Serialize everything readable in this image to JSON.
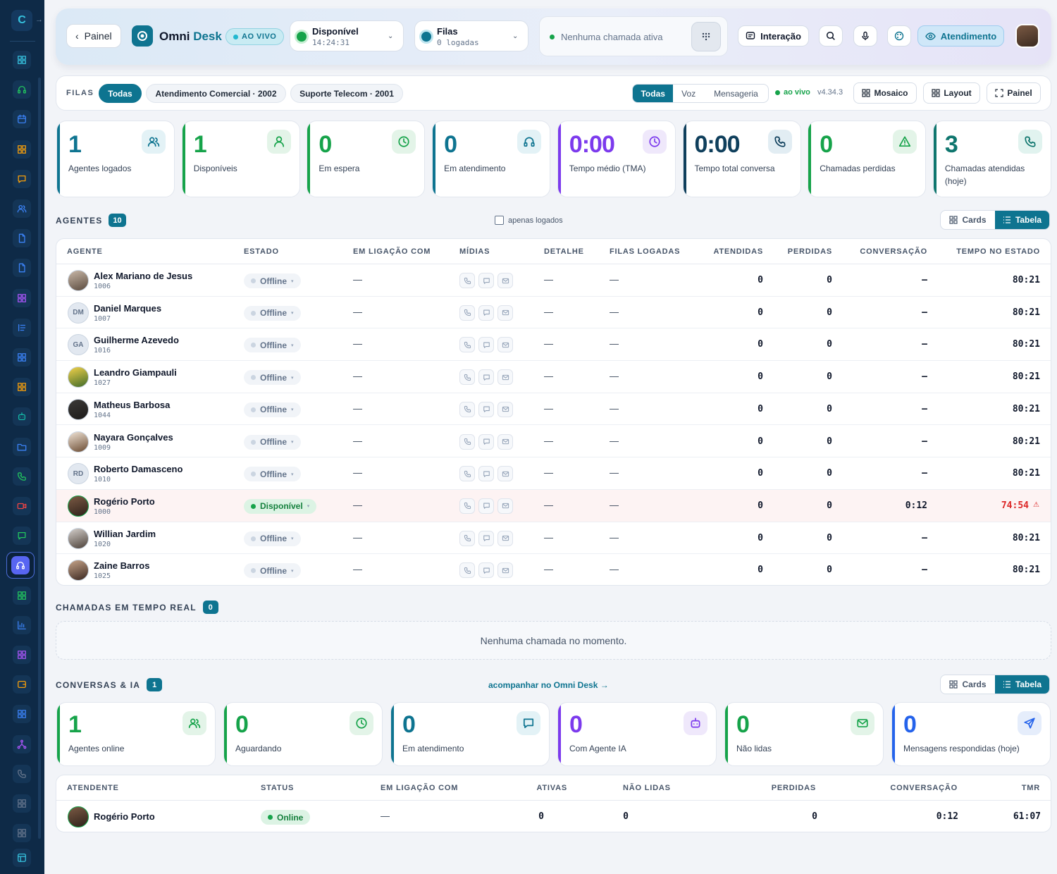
{
  "colors": {
    "accent": "#0e7490",
    "green": "#16a34a",
    "purple": "#7c3aed",
    "teal": "#0f766e",
    "blue": "#2563eb",
    "sidebar": "#0e2a47",
    "alert": "#dc2626"
  },
  "sidebar": {
    "icons": [
      "grid-icon",
      "headset-icon",
      "calendar-icon",
      "grid-icon",
      "chat-icon",
      "users-icon",
      "document-icon",
      "document-icon",
      "grid-icon",
      "list-icon",
      "grid-icon",
      "grid-icon",
      "robot-icon",
      "folder-icon",
      "phone-icon",
      "video-icon",
      "chat-icon",
      "headset-icon",
      "grid-icon",
      "chart-icon",
      "grid-icon",
      "wallet-icon",
      "grid-icon",
      "network-icon",
      "phone-icon",
      "grid-icon",
      "grid-icon",
      "panel-icon"
    ]
  },
  "header": {
    "back_label": "Painel",
    "app_title_a": "Omni",
    "app_title_b": "Desk",
    "live_label": "AO VIVO",
    "status_label": "Disponível",
    "status_timer": "14:24:31",
    "queue_label": "Filas",
    "queue_sub": "0 logadas",
    "call_status": "Nenhuma chamada ativa",
    "interaction_label": "Interação",
    "attendance_label": "Atendimento"
  },
  "filters": {
    "label": "FILAS",
    "chips": [
      "Todas",
      "Atendimento Comercial · 2002",
      "Suporte Telecom · 2001"
    ],
    "channels": [
      "Todas",
      "Voz",
      "Mensageria"
    ],
    "live": "ao vivo",
    "version": "v4.34.3",
    "mosaic": "Mosaico",
    "layout": "Layout",
    "panel": "Painel"
  },
  "kpis": [
    {
      "value": "1",
      "label": "Agentes logados",
      "color": "#0e7490",
      "icon": "users-icon"
    },
    {
      "value": "1",
      "label": "Disponíveis",
      "color": "#16a34a",
      "icon": "user-icon"
    },
    {
      "value": "0",
      "label": "Em espera",
      "color": "#16a34a",
      "icon": "clock-icon"
    },
    {
      "value": "0",
      "label": "Em atendimento",
      "color": "#0e7490",
      "icon": "headset-icon"
    },
    {
      "value": "0:00",
      "label": "Tempo médio (TMA)",
      "color": "#7c3aed",
      "icon": "clock-icon"
    },
    {
      "value": "0:00",
      "label": "Tempo total conversa",
      "color": "#0f3f5c",
      "icon": "phone-icon"
    },
    {
      "value": "0",
      "label": "Chamadas perdidas",
      "color": "#16a34a",
      "icon": "alert-icon"
    },
    {
      "value": "3",
      "label": "Chamadas atendidas (hoje)",
      "color": "#0f766e",
      "icon": "phone-icon"
    }
  ],
  "agents": {
    "title": "AGENTES",
    "count": "10",
    "only_logged": "apenas logados",
    "view_cards": "Cards",
    "view_table": "Tabela",
    "columns": [
      "AGENTE",
      "ESTADO",
      "EM LIGAÇÃO COM",
      "MÍDIAS",
      "DETALHE",
      "FILAS LOGADAS",
      "ATENDIDAS",
      "PERDIDAS",
      "CONVERSAÇÃO",
      "TEMPO NO ESTADO"
    ],
    "rows": [
      {
        "name": "Alex Mariano de Jesus",
        "ext": "1006",
        "initials": "",
        "state": "Offline",
        "call": "—",
        "detail": "—",
        "queues": "—",
        "answered": "0",
        "lost": "0",
        "conv": "–",
        "time": "80:21"
      },
      {
        "name": "Daniel Marques",
        "ext": "1007",
        "initials": "DM",
        "state": "Offline",
        "call": "—",
        "detail": "—",
        "queues": "—",
        "answered": "0",
        "lost": "0",
        "conv": "–",
        "time": "80:21"
      },
      {
        "name": "Guilherme Azevedo",
        "ext": "1016",
        "initials": "GA",
        "state": "Offline",
        "call": "—",
        "detail": "—",
        "queues": "—",
        "answered": "0",
        "lost": "0",
        "conv": "–",
        "time": "80:21"
      },
      {
        "name": "Leandro Giampauli",
        "ext": "1027",
        "initials": "",
        "state": "Offline",
        "call": "—",
        "detail": "—",
        "queues": "—",
        "answered": "0",
        "lost": "0",
        "conv": "–",
        "time": "80:21"
      },
      {
        "name": "Matheus Barbosa",
        "ext": "1044",
        "initials": "",
        "state": "Offline",
        "call": "—",
        "detail": "—",
        "queues": "—",
        "answered": "0",
        "lost": "0",
        "conv": "–",
        "time": "80:21"
      },
      {
        "name": "Nayara Gonçalves",
        "ext": "1009",
        "initials": "",
        "state": "Offline",
        "call": "—",
        "detail": "—",
        "queues": "—",
        "answered": "0",
        "lost": "0",
        "conv": "–",
        "time": "80:21"
      },
      {
        "name": "Roberto Damasceno",
        "ext": "1010",
        "initials": "RD",
        "state": "Offline",
        "call": "—",
        "detail": "—",
        "queues": "—",
        "answered": "0",
        "lost": "0",
        "conv": "–",
        "time": "80:21"
      },
      {
        "name": "Rogério Porto",
        "ext": "1000",
        "initials": "",
        "state": "Disponível",
        "call": "—",
        "detail": "—",
        "queues": "—",
        "answered": "0",
        "lost": "0",
        "conv": "0:12",
        "time": "74:54"
      },
      {
        "name": "Willian Jardim",
        "ext": "1020",
        "initials": "",
        "state": "Offline",
        "call": "—",
        "detail": "—",
        "queues": "—",
        "answered": "0",
        "lost": "0",
        "conv": "–",
        "time": "80:21"
      },
      {
        "name": "Zaine Barros",
        "ext": "1025",
        "initials": "",
        "state": "Offline",
        "call": "—",
        "detail": "—",
        "queues": "—",
        "answered": "0",
        "lost": "0",
        "conv": "–",
        "time": "80:21"
      }
    ]
  },
  "calls": {
    "title": "CHAMADAS EM TEMPO REAL",
    "count": "0",
    "empty": "Nenhuma chamada no momento."
  },
  "conversations": {
    "title": "CONVERSAS & IA",
    "count": "1",
    "follow": "acompanhar no Omni Desk →",
    "view_cards": "Cards",
    "view_table": "Tabela",
    "kpis": [
      {
        "value": "1",
        "label": "Agentes online",
        "color": "#16a34a",
        "icon": "users-icon"
      },
      {
        "value": "0",
        "label": "Aguardando",
        "color": "#16a34a",
        "icon": "clock-icon"
      },
      {
        "value": "0",
        "label": "Em atendimento",
        "color": "#0e7490",
        "icon": "chat-icon"
      },
      {
        "value": "0",
        "label": "Com Agente IA",
        "color": "#7c3aed",
        "icon": "robot-icon"
      },
      {
        "value": "0",
        "label": "Não lidas",
        "color": "#16a34a",
        "icon": "mail-icon"
      },
      {
        "value": "0",
        "label": "Mensagens respondidas (hoje)",
        "color": "#2563eb",
        "icon": "send-icon"
      }
    ],
    "columns": [
      "ATENDENTE",
      "STATUS",
      "EM LIGAÇÃO COM",
      "ATIVAS",
      "NÃO LIDAS",
      "PERDIDAS",
      "CONVERSAÇÃO",
      "TMR"
    ],
    "row": {
      "name": "Rogério Porto",
      "status": "Online",
      "call": "—",
      "active": "0",
      "unread": "0",
      "lost": "0",
      "conv": "0:12",
      "tmr": "61:07"
    }
  }
}
